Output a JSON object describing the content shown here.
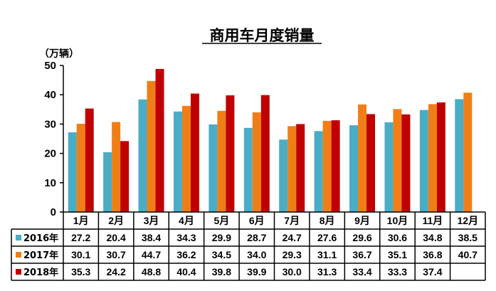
{
  "chart_data": {
    "type": "bar",
    "title": "商用车月度销量",
    "unit_label": "（万辆）",
    "ylim": [
      0,
      50
    ],
    "yticks": [
      0,
      10,
      20,
      30,
      40,
      50
    ],
    "grid": false,
    "legend_placement": "left of data table",
    "categories": [
      "1月",
      "2月",
      "3月",
      "4月",
      "5月",
      "6月",
      "7月",
      "8月",
      "9月",
      "10月",
      "11月",
      "12月"
    ],
    "series": [
      {
        "name": "2016年",
        "color": "#4BACC6",
        "values": [
          27.2,
          20.4,
          38.4,
          34.3,
          29.9,
          28.7,
          24.7,
          27.6,
          29.6,
          30.6,
          34.8,
          38.5
        ],
        "labels": [
          "27.2",
          "20.4",
          "38.4",
          "34.3",
          "29.9",
          "28.7",
          "24.7",
          "27.6",
          "29.6",
          "30.6",
          "34.8",
          "38.5"
        ]
      },
      {
        "name": "2017年",
        "color": "#F07E16",
        "values": [
          30.1,
          30.7,
          44.7,
          36.2,
          34.5,
          34.0,
          29.3,
          31.1,
          36.7,
          35.1,
          36.8,
          40.7
        ],
        "labels": [
          "30.1",
          "30.7",
          "44.7",
          "36.2",
          "34.5",
          "34.0",
          "29.3",
          "31.1",
          "36.7",
          "35.1",
          "36.8",
          "40.7"
        ]
      },
      {
        "name": "2018年",
        "color": "#C00000",
        "values": [
          35.3,
          24.2,
          48.8,
          40.4,
          39.8,
          39.9,
          30.0,
          31.3,
          33.4,
          33.3,
          37.4,
          null
        ],
        "labels": [
          "35.3",
          "24.2",
          "48.8",
          "40.4",
          "39.8",
          "39.9",
          "30.0",
          "31.3",
          "33.4",
          "33.3",
          "37.4",
          ""
        ]
      }
    ]
  }
}
